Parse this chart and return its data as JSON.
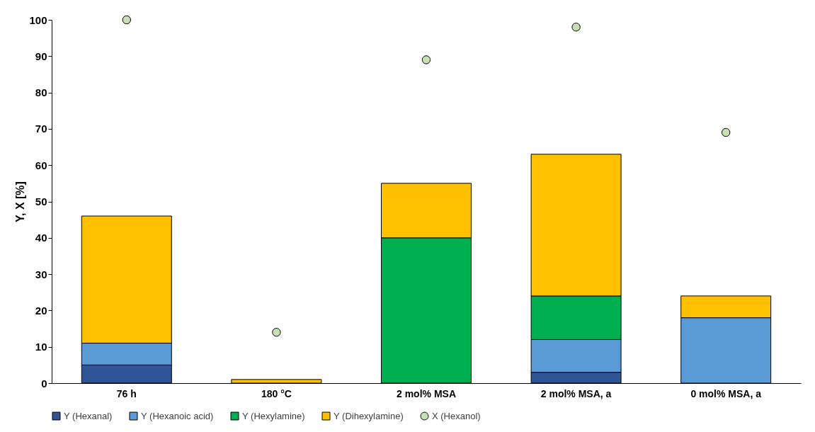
{
  "chart_data": {
    "type": "bar",
    "stacked": true,
    "ylabel": "Y, X [%]",
    "categories": [
      "76 h",
      "180 °C",
      "2 mol% MSA",
      "2 mol% MSA, a",
      "0 mol% MSA, a"
    ],
    "ylim": [
      0,
      100
    ],
    "yticks": [
      0,
      10,
      20,
      30,
      40,
      50,
      60,
      70,
      80,
      90,
      100
    ],
    "legend": "bottom",
    "marker": "circle",
    "series": [
      {
        "name": "Y (Hexanal)",
        "color": "#2f5597",
        "values": [
          5,
          null,
          null,
          3,
          null
        ]
      },
      {
        "name": "Y (Hexanoic acid)",
        "color": "#5b9bd5",
        "values": [
          6,
          null,
          null,
          9,
          18
        ]
      },
      {
        "name": "Y (Hexylamine)",
        "color": "#00b050",
        "values": [
          null,
          null,
          40,
          12,
          null
        ]
      },
      {
        "name": "Y (Dihexylamine)",
        "color": "#ffc000",
        "values": [
          35,
          1,
          15,
          39,
          6
        ]
      },
      {
        "name": "X (Hexanol)",
        "type": "scatter",
        "color": "#c5e0b4",
        "x": [
          "76 h",
          "180 °C",
          "2 mol% MSA",
          "2 mol% MSA, a",
          "0 mol% MSA, a"
        ],
        "values": [
          100,
          14,
          89,
          98,
          69
        ]
      }
    ]
  }
}
